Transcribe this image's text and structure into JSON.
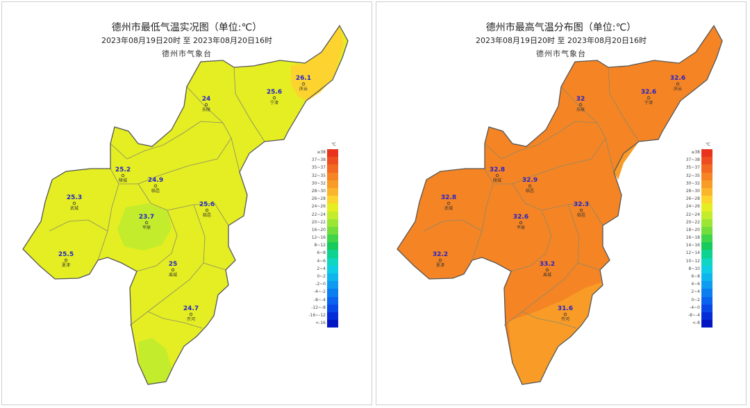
{
  "maps": [
    {
      "title": "德州市最低气温实况图（单位:℃）",
      "subtitle": "2023年08月19日20时  至  2023年08月20日16时",
      "org": "德州市气象台",
      "stations": [
        {
          "value": "26.1",
          "name": "庆云"
        },
        {
          "value": "24",
          "name": "乐陵"
        },
        {
          "value": "25.6",
          "name": "宁津"
        },
        {
          "value": "25.2",
          "name": "陵城"
        },
        {
          "value": "24.9",
          "name": "临邑"
        },
        {
          "value": "25.3",
          "name": "武城"
        },
        {
          "value": "23.7",
          "name": "平原"
        },
        {
          "value": "25.6",
          "name": "临邑"
        },
        {
          "value": "25.5",
          "name": "夏津"
        },
        {
          "value": "25",
          "name": "禹城"
        },
        {
          "value": "24.7",
          "name": "齐河"
        }
      ],
      "legend_unit": "℃",
      "legend": [
        {
          "label": "≥38",
          "color": "#e8341c"
        },
        {
          "label": "37~38",
          "color": "#ee4e1f"
        },
        {
          "label": "35~37",
          "color": "#f26a21"
        },
        {
          "label": "32~35",
          "color": "#f58424"
        },
        {
          "label": "30~32",
          "color": "#f89c27"
        },
        {
          "label": "28~30",
          "color": "#fbb52b"
        },
        {
          "label": "26~28",
          "color": "#fdd32f"
        },
        {
          "label": "24~26",
          "color": "#e4ee22"
        },
        {
          "label": "22~24",
          "color": "#c2ec2c"
        },
        {
          "label": "20~22",
          "color": "#9be634"
        },
        {
          "label": "16~20",
          "color": "#73dd3c"
        },
        {
          "label": "12~16",
          "color": "#40d44a"
        },
        {
          "label": "8~12",
          "color": "#16cb5c"
        },
        {
          "label": "6~8",
          "color": "#0ed28f"
        },
        {
          "label": "4~6",
          "color": "#0fd6c0"
        },
        {
          "label": "2~4",
          "color": "#0fcde4"
        },
        {
          "label": "0~2",
          "color": "#0fb6ee"
        },
        {
          "label": "-2~0",
          "color": "#0e9bf0"
        },
        {
          "label": "-4~-2",
          "color": "#0c7ff0"
        },
        {
          "label": "-8~-4",
          "color": "#0a63ee"
        },
        {
          "label": "-12~-8",
          "color": "#0848e6"
        },
        {
          "label": "-16~-12",
          "color": "#052ed8"
        },
        {
          "label": "<-16",
          "color": "#0317c2"
        }
      ],
      "colors": {
        "main": "#e4ee22",
        "warm": "#fdd32f",
        "cool": "#c2ec2c"
      }
    },
    {
      "title": "德州市最高气温分布图（单位:℃）",
      "subtitle": "2023年08月19日20时  至  2023年08月20日16时",
      "org": "德州市气象台",
      "stations": [
        {
          "value": "32.6",
          "name": "庆云"
        },
        {
          "value": "32",
          "name": "乐陵"
        },
        {
          "value": "32.6",
          "name": "宁津"
        },
        {
          "value": "32.8",
          "name": "陵城"
        },
        {
          "value": "32.9",
          "name": "临邑"
        },
        {
          "value": "32.8",
          "name": "武城"
        },
        {
          "value": "32.6",
          "name": "平原"
        },
        {
          "value": "32.3",
          "name": "临邑"
        },
        {
          "value": "32.2",
          "name": "夏津"
        },
        {
          "value": "33.2",
          "name": "禹城"
        },
        {
          "value": "31.6",
          "name": "齐河"
        }
      ],
      "legend_unit": "℃",
      "legend": [
        {
          "label": "≥38",
          "color": "#e8341c"
        },
        {
          "label": "37~38",
          "color": "#ee4e1f"
        },
        {
          "label": "35~37",
          "color": "#f26a21"
        },
        {
          "label": "32~35",
          "color": "#f58424"
        },
        {
          "label": "30~32",
          "color": "#f89c27"
        },
        {
          "label": "28~30",
          "color": "#fbb52b"
        },
        {
          "label": "26~28",
          "color": "#fdd32f"
        },
        {
          "label": "24~26",
          "color": "#e4ee22"
        },
        {
          "label": "22~24",
          "color": "#c2ec2c"
        },
        {
          "label": "20~22",
          "color": "#9be634"
        },
        {
          "label": "18~20",
          "color": "#73dd3c"
        },
        {
          "label": "16~18",
          "color": "#40d44a"
        },
        {
          "label": "14~16",
          "color": "#16cb5c"
        },
        {
          "label": "12~14",
          "color": "#0ed28f"
        },
        {
          "label": "10~12",
          "color": "#0fd6c0"
        },
        {
          "label": "8~10",
          "color": "#0fcde4"
        },
        {
          "label": "6~8",
          "color": "#0fb6ee"
        },
        {
          "label": "4~6",
          "color": "#0e9bf0"
        },
        {
          "label": "2~4",
          "color": "#0c7ff0"
        },
        {
          "label": "0~2",
          "color": "#0a63ee"
        },
        {
          "label": "-4~0",
          "color": "#0848e6"
        },
        {
          "label": "-8~-4",
          "color": "#052ed8"
        },
        {
          "label": "<-8",
          "color": "#0317c2"
        }
      ],
      "colors": {
        "main": "#f58424",
        "warm": "#f26a21",
        "cool": "#f89c27"
      }
    }
  ]
}
